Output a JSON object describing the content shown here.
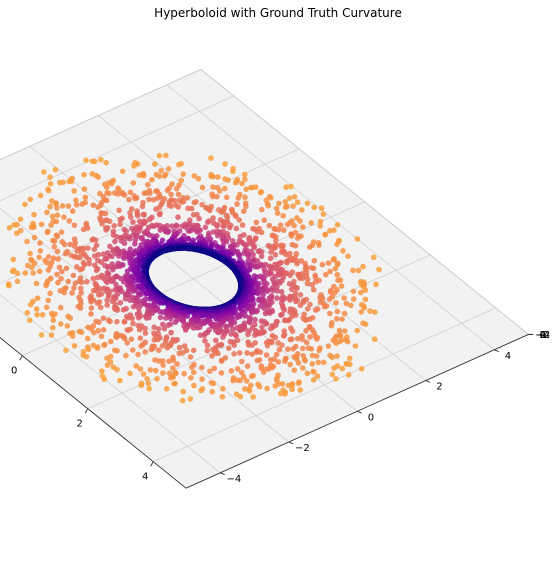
{
  "chart_data": {
    "type": "scatter",
    "projection": "3d",
    "title": "Hyperboloid with Ground Truth Curvature",
    "surface": "hyperboloid of one sheet: x^2 + y^2 - z^2 = 1",
    "colormap": "plasma",
    "color_meaning": "ground truth curvature (dark purple near the throat, yellow toward the outer edge)",
    "point_count_approx": 3000,
    "x_range": [
      -5,
      5
    ],
    "y_range": [
      -5,
      5
    ],
    "z_range": [
      -5,
      5
    ],
    "xlim": [
      -5,
      5
    ],
    "ylim": [
      -5,
      5
    ],
    "zlim": [
      -5,
      5
    ],
    "x_ticks": [
      "−4",
      "−2",
      "0",
      "2",
      "4"
    ],
    "y_ticks": [
      "−4",
      "−2",
      "0",
      "2",
      "4"
    ],
    "z_ticks": [
      "−4",
      "−2",
      "0",
      "2",
      "4"
    ],
    "xlabel": "",
    "ylabel": "",
    "zlabel": "",
    "grid": true,
    "legend": false,
    "pane_color": "#f2f2f2",
    "grid_color": "#d0d0d0"
  }
}
